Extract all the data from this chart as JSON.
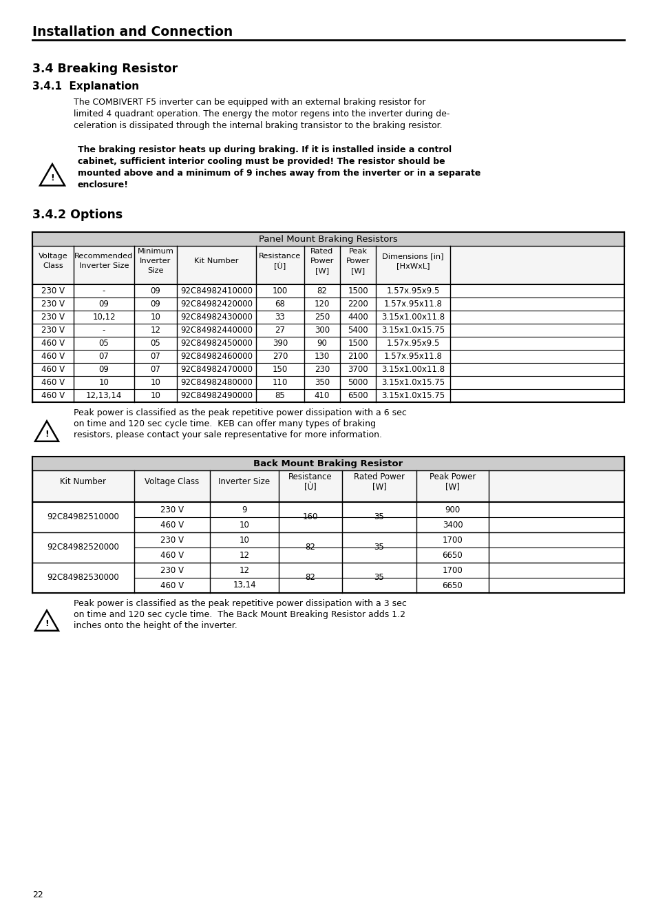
{
  "page_title": "Installation and Connection",
  "section_title": "3.4 Breaking Resistor",
  "subsection1": "3.4.1  Explanation",
  "explanation_text": "The COMBIVERT F5 inverter can be equipped with an external braking resistor for\nlimited 4 quadrant operation. The energy the motor regens into the inverter during de-\nceleration is dissipated through the internal braking transistor to the braking resistor.",
  "warning_text1": "The braking resistor heats up during braking. If it is installed inside a control\ncabinet, sufficient interior cooling must be provided! The resistor should be\nmounted above and a minimum of 9 inches away from the inverter or in a separate\nenclosure!",
  "subsection2": "3.4.2 Options",
  "table1_title": "Panel Mount Braking Resistors",
  "table1_headers": [
    "Voltage\nClass",
    "Recommended\nInverter Size",
    "Minimum\nInverter\nSize",
    "Kit Number",
    "Resistance\n[Ù]",
    "Rated\nPower\n[W]",
    "Peak\nPower\n[W]",
    "Dimensions [in]\n[HxWxL]"
  ],
  "table1_col_widths": [
    60,
    88,
    62,
    115,
    70,
    52,
    52,
    108
  ],
  "table1_data": [
    [
      "230 V",
      "-",
      "09",
      "92C84982410000",
      "100",
      "82",
      "1500",
      "1.57x.95x9.5"
    ],
    [
      "230 V",
      "09",
      "09",
      "92C84982420000",
      "68",
      "120",
      "2200",
      "1.57x.95x11.8"
    ],
    [
      "230 V",
      "10,12",
      "10",
      "92C84982430000",
      "33",
      "250",
      "4400",
      "3.15x1.00x11.8"
    ],
    [
      "230 V",
      "-",
      "12",
      "92C84982440000",
      "27",
      "300",
      "5400",
      "3.15x1.0x15.75"
    ],
    [
      "460 V",
      "05",
      "05",
      "92C84982450000",
      "390",
      "90",
      "1500",
      "1.57x.95x9.5"
    ],
    [
      "460 V",
      "07",
      "07",
      "92C84982460000",
      "270",
      "130",
      "2100",
      "1.57x.95x11.8"
    ],
    [
      "460 V",
      "09",
      "07",
      "92C84982470000",
      "150",
      "230",
      "3700",
      "3.15x1.00x11.8"
    ],
    [
      "460 V",
      "10",
      "10",
      "92C84982480000",
      "110",
      "350",
      "5000",
      "3.15x1.0x15.75"
    ],
    [
      "460 V",
      "12,13,14",
      "10",
      "92C84982490000",
      "85",
      "410",
      "6500",
      "3.15x1.0x15.75"
    ]
  ],
  "warning_text2": "Peak power is classified as the peak repetitive power dissipation with a 6 sec\non time and 120 sec cycle time.  KEB can offer many types of braking\nresistors, please contact your sale representative for more information.",
  "table2_title": "Back Mount Braking Resistor",
  "table2_headers": [
    "Kit Number",
    "Voltage Class",
    "Inverter Size",
    "Resistance\n[Ù]",
    "Rated Power\n[W]",
    "Peak Power\n[W]"
  ],
  "table2_col_widths": [
    148,
    110,
    100,
    92,
    108,
    105
  ],
  "table2_data": [
    [
      "92C84982510000",
      "230 V",
      "9",
      "160",
      "35",
      "900"
    ],
    [
      "",
      "460 V",
      "10",
      "",
      "",
      "3400"
    ],
    [
      "92C84982520000",
      "230 V",
      "10",
      "82",
      "35",
      "1700"
    ],
    [
      "",
      "460 V",
      "12",
      "",
      "",
      "6650"
    ],
    [
      "92C84982530000",
      "230 V",
      "12",
      "82",
      "35",
      "1700"
    ],
    [
      "",
      "460 V",
      "13,14",
      "",
      "",
      "6650"
    ]
  ],
  "warning_text3": "Peak power is classified as the peak repetitive power dissipation with a 3 sec\non time and 120 sec cycle time.  The Back Mount Breaking Resistor adds 1.2\ninches onto the height of the inverter.",
  "page_number": "22",
  "bg_color": "#ffffff"
}
